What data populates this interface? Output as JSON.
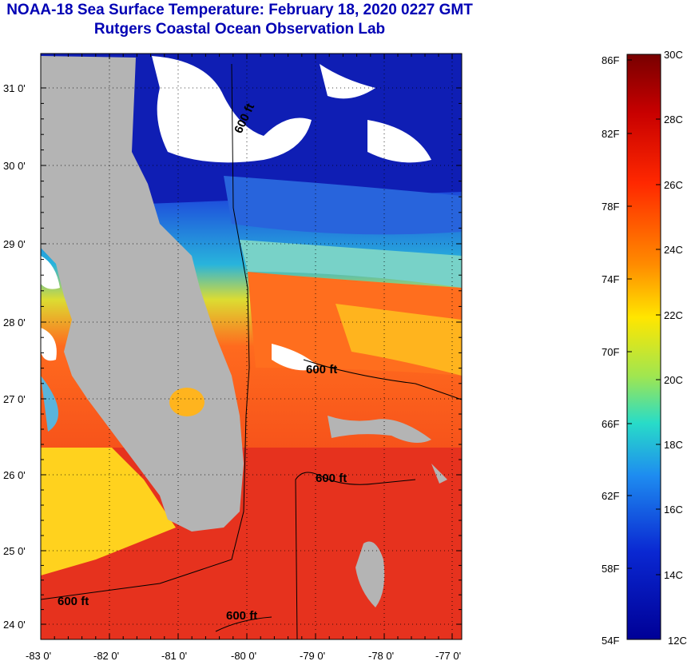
{
  "title": {
    "line1": "NOAA-18 Sea Surface Temperature:  February 18, 2020 0227 GMT",
    "line2": "Rutgers Coastal Ocean Observation Lab"
  },
  "map": {
    "lat_labels": [
      "31 0'",
      "30 0'",
      "29 0'",
      "28 0'",
      "27 0'",
      "26 0'",
      "25 0'",
      "24 0'"
    ],
    "lon_labels": [
      "-83 0'",
      "-82 0'",
      "-81 0'",
      "-80 0'",
      "-79 0'",
      "-78 0'",
      "-77 0'"
    ],
    "contour_labels": [
      "600 ft",
      "600 ft",
      "600 ft",
      "600 ft",
      "600 ft"
    ]
  },
  "colorbar": {
    "fahrenheit_labels": [
      "86F",
      "82F",
      "78F",
      "74F",
      "70F",
      "66F",
      "62F",
      "58F",
      "54F"
    ],
    "celsius_labels": [
      "30C",
      "28C",
      "26C",
      "24C",
      "22C",
      "20C",
      "18C",
      "16C",
      "14C",
      "12C"
    ]
  },
  "colors": {
    "land": "#b4b4b4",
    "cloud": "#ffffff",
    "title": "#0000b4",
    "cold": "#0a0ab4",
    "warm": "#e63214"
  }
}
